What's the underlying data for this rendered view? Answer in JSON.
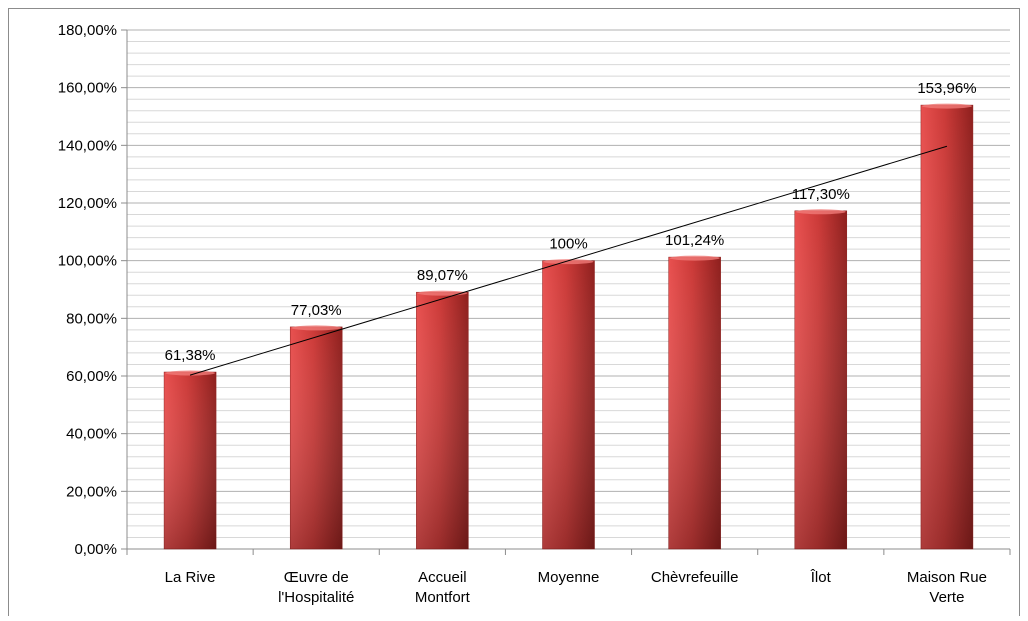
{
  "chart_data": {
    "type": "bar",
    "categories": [
      [
        "La Rive"
      ],
      [
        "Œuvre de",
        "l'Hospitalité"
      ],
      [
        "Accueil",
        "Montfort"
      ],
      [
        "Moyenne"
      ],
      [
        "Chèvrefeuille"
      ],
      [
        "Îlot"
      ],
      [
        "Maison Rue",
        "Verte"
      ]
    ],
    "values": [
      61.38,
      77.03,
      89.07,
      100,
      101.24,
      117.3,
      153.96
    ],
    "data_labels": [
      "61,38%",
      "77,03%",
      "89,07%",
      "100%",
      "101,24%",
      "117,30%",
      "153,96%"
    ],
    "y_ticks": [
      "0,00%",
      "20,00%",
      "40,00%",
      "60,00%",
      "80,00%",
      "100,00%",
      "120,00%",
      "140,00%",
      "160,00%",
      "180,00%"
    ],
    "ylim": [
      0,
      180
    ],
    "major_tick_step": 20,
    "minor_grid_step": 4,
    "trendline": "linear",
    "grid": true,
    "legend": "none",
    "title": "",
    "xlabel": "",
    "ylabel": "",
    "colors": {
      "bar_light": "#e8504f",
      "bar_mid": "#cc3a38",
      "bar_dark": "#8e1f1d",
      "grid_major": "#b0b0b0",
      "grid_minor": "#d8d8d8",
      "axis": "#8c8c8c",
      "trendline": "#000000"
    }
  }
}
